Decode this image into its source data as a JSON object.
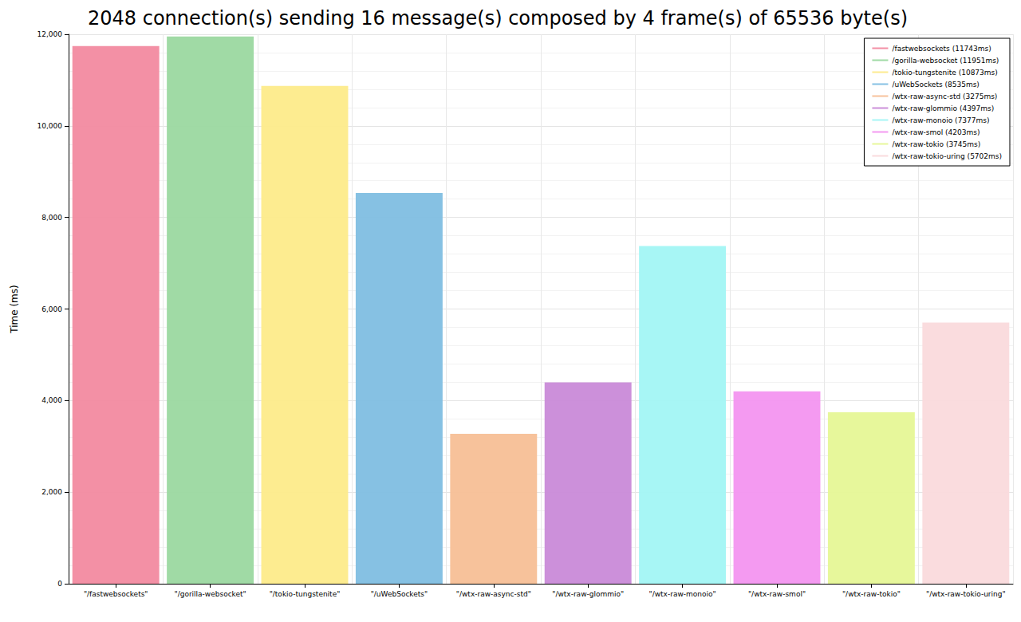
{
  "chart_data": {
    "type": "bar",
    "title": "2048 connection(s) sending 16 message(s) composed by 4 frame(s) of 65536 byte(s)",
    "y_label": "Time (ms)",
    "categories": [
      "\"/fastwebsockets\"",
      "\"/gorilla-websocket\"",
      "\"/tokio-tungstenite\"",
      "\"/uWebSockets\"",
      "\"/wtx-raw-async-std\"",
      "\"/wtx-raw-glommio\"",
      "\"/wtx-raw-monoio\"",
      "\"/wtx-raw-smol\"",
      "\"/wtx-raw-tokio\"",
      "\"/wtx-raw-tokio-uring\""
    ],
    "series": [
      {
        "name": "/fastwebsockets (11743ms)",
        "color": "#f28aa0",
        "values": [
          11743,
          null,
          null,
          null,
          null,
          null,
          null,
          null,
          null,
          null
        ]
      },
      {
        "name": "/gorilla-websocket (11951ms)",
        "color": "#9bd8a0",
        "values": [
          null,
          11951,
          null,
          null,
          null,
          null,
          null,
          null,
          null,
          null
        ]
      },
      {
        "name": "/tokio-tungstenite (10873ms)",
        "color": "#fdeb8a",
        "values": [
          null,
          null,
          10873,
          null,
          null,
          null,
          null,
          null,
          null,
          null
        ]
      },
      {
        "name": "/uWebSockets (8535ms)",
        "color": "#80bee2",
        "values": [
          null,
          null,
          null,
          8535,
          null,
          null,
          null,
          null,
          null,
          null
        ]
      },
      {
        "name": "/wtx-raw-async-std (3275ms)",
        "color": "#f7bf96",
        "values": [
          null,
          null,
          null,
          null,
          3275,
          null,
          null,
          null,
          null,
          null
        ]
      },
      {
        "name": "/wtx-raw-glommio (4397ms)",
        "color": "#c98ad8",
        "values": [
          null,
          null,
          null,
          null,
          null,
          4397,
          null,
          null,
          null,
          null
        ]
      },
      {
        "name": "/wtx-raw-monoio (7377ms)",
        "color": "#a2f6f4",
        "values": [
          null,
          null,
          null,
          null,
          null,
          null,
          7377,
          null,
          null,
          null
        ]
      },
      {
        "name": "/wtx-raw-smol (4203ms)",
        "color": "#f395f0",
        "values": [
          null,
          null,
          null,
          null,
          null,
          null,
          null,
          4203,
          null,
          null
        ]
      },
      {
        "name": "/wtx-raw-tokio (3745ms)",
        "color": "#e6f796",
        "values": [
          null,
          null,
          null,
          null,
          null,
          null,
          null,
          null,
          3745,
          null
        ]
      },
      {
        "name": "/wtx-raw-tokio-uring (5702ms)",
        "color": "#fadadc",
        "values": [
          null,
          null,
          null,
          null,
          null,
          null,
          null,
          null,
          null,
          5702
        ]
      }
    ],
    "ylim": [
      0,
      12000
    ],
    "yticks": [
      0,
      2000,
      4000,
      6000,
      8000,
      10000,
      12000
    ],
    "grid": true,
    "legend": "top-right"
  }
}
